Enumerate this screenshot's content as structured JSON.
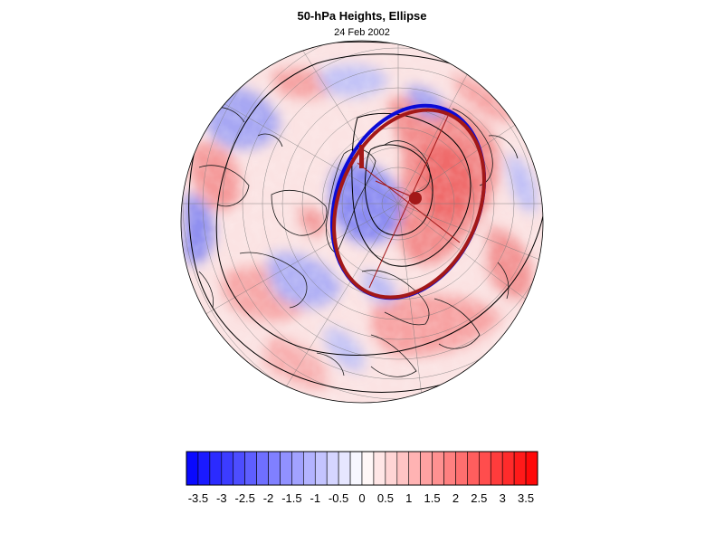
{
  "title": "50-hPa Heights, Ellipse",
  "date": "24 Feb 2002",
  "colorbar": {
    "min": -3.75,
    "max": 3.75,
    "step": 0.25,
    "tick_labels": [
      "-3.5",
      "-3",
      "-2.5",
      "-2",
      "-1.5",
      "-1",
      "-0.5",
      "0",
      "0.5",
      "1",
      "1.5",
      "2",
      "2.5",
      "3",
      "3.5"
    ],
    "colors": {
      "negative": "#0000ff",
      "neutral": "#ffffff",
      "positive": "#ff0000"
    }
  },
  "overlays": {
    "ellipse_blue_color": "#0b0bd6",
    "ellipse_red_color": "#a31818",
    "centroid_color": "#a31818"
  }
}
